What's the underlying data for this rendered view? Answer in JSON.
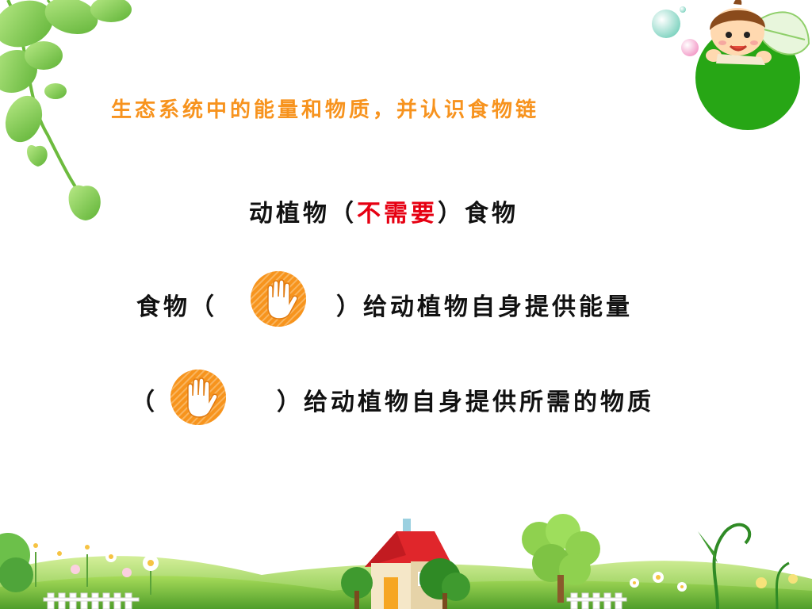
{
  "slide": {
    "title": "生态系统中的能量和物质，并认识食物链",
    "line1": {
      "prefix": "动植物（",
      "answer": "不需要",
      "suffix": "）食物"
    },
    "line2": {
      "prefix": "食物（",
      "suffix": "）给动植物自身提供能量"
    },
    "line3": {
      "prefix": "（",
      "suffix": "）给动植物自身提供所需的物质"
    }
  },
  "icons": {
    "hand": "hand-icon",
    "decor": [
      "vine-icon",
      "kid-icon",
      "bubble-icon",
      "house-icon",
      "tree-icon",
      "flower-icon",
      "fence-icon"
    ]
  },
  "colors": {
    "accent": "#f7931e",
    "answer": "#e60012",
    "green": "#27a615"
  }
}
